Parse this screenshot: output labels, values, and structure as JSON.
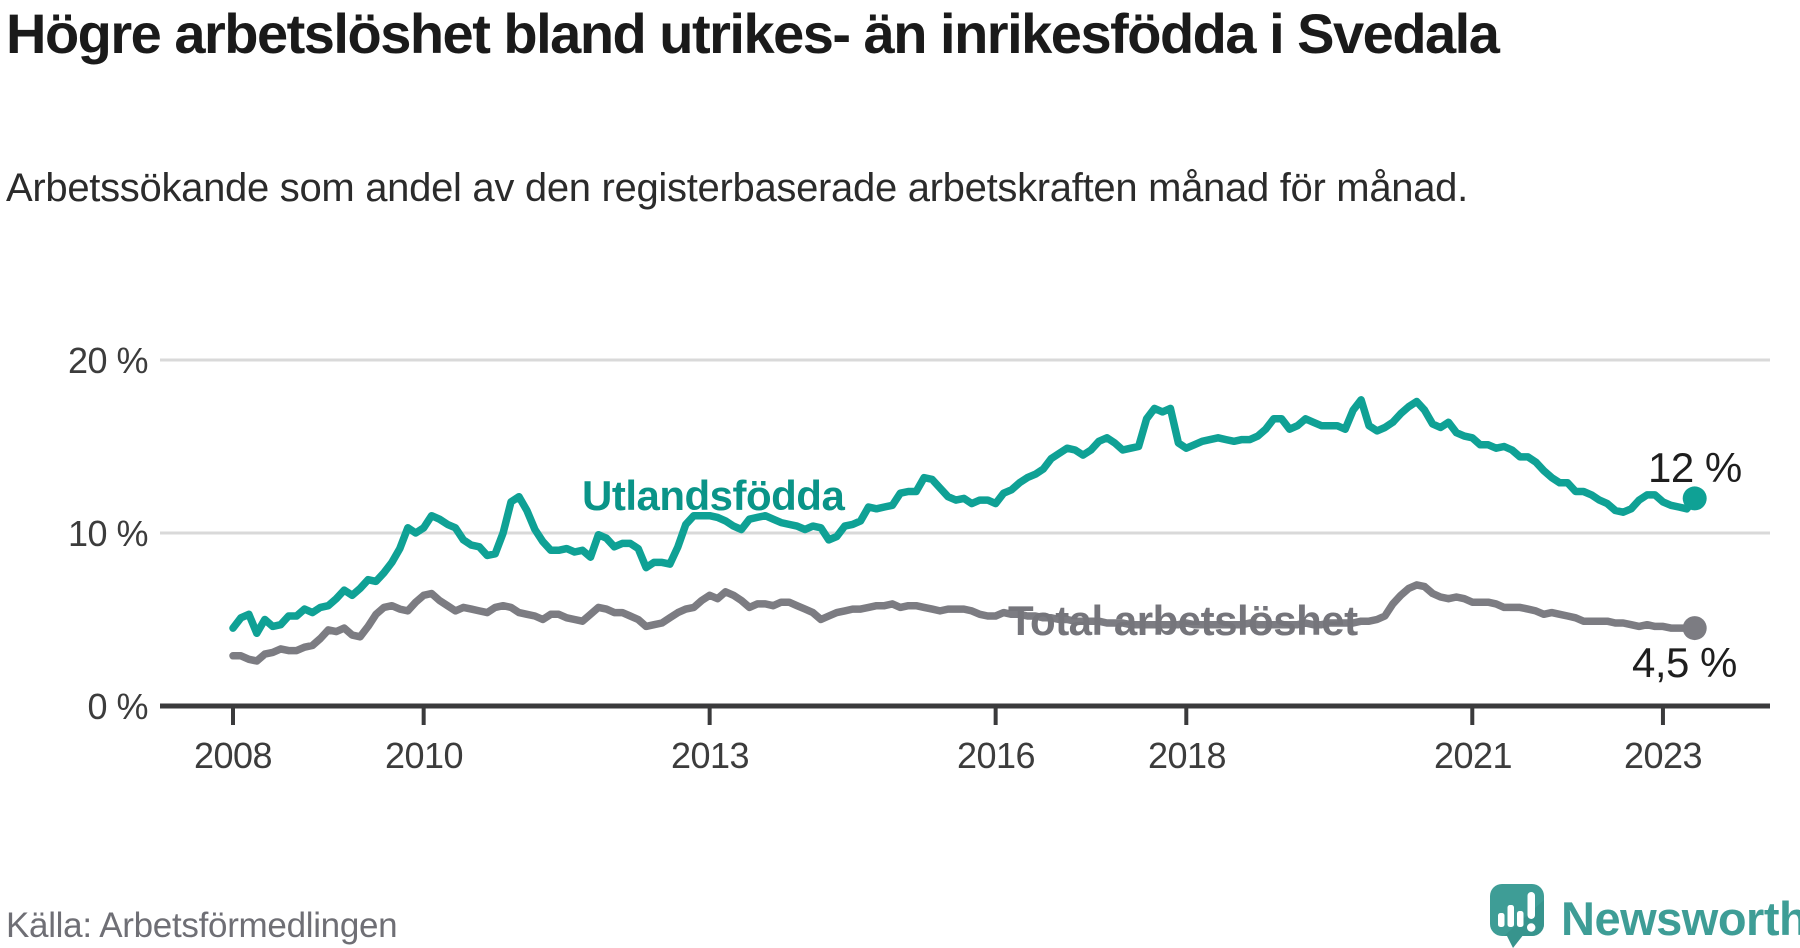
{
  "header": {
    "title": "Högre arbetslöshet bland utrikes- än inrikesfödda i Svedala",
    "subtitle": "Arbetssökande som andel av den registerbaserade arbetskraften månad för månad."
  },
  "source": {
    "label": "Källa: Arbetsförmedlingen"
  },
  "branding": {
    "wordmark": "Newsworthy",
    "logo_icon": "newsworthy-speech-bubble-bar-chart-icon",
    "brand_color": "#3E9D96"
  },
  "chart_data": {
    "type": "line",
    "title": "Högre arbetslöshet bland utrikes- än inrikesfödda i Svedala",
    "x_unit": "month",
    "x_range": "2008-01 to 2023-05",
    "grid": "horizontal",
    "ylim": [
      0,
      21
    ],
    "y_ticks": [
      {
        "label": "20 %",
        "value": 20
      },
      {
        "label": "10 %",
        "value": 10
      },
      {
        "label": "0 %",
        "value": 0
      }
    ],
    "x_ticks": [
      {
        "label": "2008",
        "year": 2008
      },
      {
        "label": "2010",
        "year": 2010
      },
      {
        "label": "2013",
        "year": 2013
      },
      {
        "label": "2016",
        "year": 2016
      },
      {
        "label": "2018",
        "year": 2018
      },
      {
        "label": "2021",
        "year": 2021
      },
      {
        "label": "2023",
        "year": 2023
      }
    ],
    "series": [
      {
        "name": "Utlandsfödda",
        "color": "#0FA195",
        "label_color": "#0A9488",
        "end_label": "12 %",
        "end_value": 12,
        "values": [
          4.5,
          5.1,
          5.3,
          4.2,
          5.0,
          4.6,
          4.7,
          5.2,
          5.2,
          5.6,
          5.4,
          5.7,
          5.8,
          6.2,
          6.7,
          6.4,
          6.8,
          7.3,
          7.2,
          7.7,
          8.3,
          9.1,
          10.3,
          10.0,
          10.3,
          11.0,
          10.8,
          10.5,
          10.3,
          9.6,
          9.3,
          9.2,
          8.7,
          8.8,
          10.0,
          11.8,
          12.1,
          11.3,
          10.2,
          9.5,
          9.0,
          9.0,
          9.1,
          8.9,
          9.0,
          8.6,
          9.9,
          9.7,
          9.2,
          9.4,
          9.4,
          9.1,
          8.0,
          8.3,
          8.3,
          8.2,
          9.2,
          10.5,
          11.0,
          11.0,
          11.0,
          10.9,
          10.7,
          10.4,
          10.2,
          10.8,
          10.9,
          11.0,
          10.8,
          10.6,
          10.5,
          10.4,
          10.2,
          10.4,
          10.3,
          9.6,
          9.8,
          10.4,
          10.5,
          10.7,
          11.5,
          11.4,
          11.5,
          11.6,
          12.3,
          12.4,
          12.4,
          13.2,
          13.1,
          12.6,
          12.1,
          11.9,
          12.0,
          11.7,
          11.9,
          11.9,
          11.7,
          12.3,
          12.5,
          12.9,
          13.2,
          13.4,
          13.7,
          14.3,
          14.6,
          14.9,
          14.8,
          14.5,
          14.8,
          15.3,
          15.5,
          15.2,
          14.8,
          14.9,
          15.0,
          16.6,
          17.2,
          17.0,
          17.2,
          15.2,
          14.9,
          15.1,
          15.3,
          15.4,
          15.5,
          15.4,
          15.3,
          15.4,
          15.4,
          15.6,
          16.0,
          16.6,
          16.6,
          16.0,
          16.2,
          16.6,
          16.4,
          16.2,
          16.2,
          16.2,
          16.0,
          17.1,
          17.7,
          16.2,
          15.9,
          16.1,
          16.4,
          16.9,
          17.3,
          17.6,
          17.1,
          16.3,
          16.1,
          16.4,
          15.8,
          15.6,
          15.5,
          15.1,
          15.1,
          14.9,
          15.0,
          14.8,
          14.4,
          14.4,
          14.1,
          13.6,
          13.2,
          12.9,
          12.9,
          12.4,
          12.4,
          12.2,
          11.9,
          11.7,
          11.3,
          11.2,
          11.4,
          11.9,
          12.2,
          12.2,
          11.8,
          11.6,
          11.5,
          11.4,
          12.0
        ]
      },
      {
        "name": "Total arbetslöshet",
        "color": "#7C7C82",
        "label_color": "#75757B",
        "end_label": "4,5 %",
        "end_value": 4.5,
        "values": [
          2.9,
          2.9,
          2.7,
          2.6,
          3.0,
          3.1,
          3.3,
          3.2,
          3.2,
          3.4,
          3.5,
          3.9,
          4.4,
          4.3,
          4.5,
          4.1,
          4.0,
          4.6,
          5.3,
          5.7,
          5.8,
          5.6,
          5.5,
          6.0,
          6.4,
          6.5,
          6.1,
          5.8,
          5.5,
          5.7,
          5.6,
          5.5,
          5.4,
          5.7,
          5.8,
          5.7,
          5.4,
          5.3,
          5.2,
          5.0,
          5.3,
          5.3,
          5.1,
          5.0,
          4.9,
          5.3,
          5.7,
          5.6,
          5.4,
          5.4,
          5.2,
          5.0,
          4.6,
          4.7,
          4.8,
          5.1,
          5.4,
          5.6,
          5.7,
          6.1,
          6.4,
          6.2,
          6.6,
          6.4,
          6.1,
          5.7,
          5.9,
          5.9,
          5.8,
          6.0,
          6.0,
          5.8,
          5.6,
          5.4,
          5.0,
          5.2,
          5.4,
          5.5,
          5.6,
          5.6,
          5.7,
          5.8,
          5.8,
          5.9,
          5.7,
          5.8,
          5.8,
          5.7,
          5.6,
          5.5,
          5.6,
          5.6,
          5.6,
          5.5,
          5.3,
          5.2,
          5.2,
          5.4,
          5.3,
          5.3,
          5.2,
          5.2,
          5.1,
          5.1,
          5.0,
          5.0,
          4.9,
          4.9,
          4.9,
          4.9,
          4.8,
          4.8,
          4.8,
          4.7,
          4.7,
          4.7,
          4.7,
          4.7,
          4.7,
          4.7,
          4.8,
          4.7,
          4.7,
          4.7,
          4.7,
          4.7,
          4.7,
          4.7,
          4.8,
          4.7,
          4.7,
          4.7,
          4.7,
          4.7,
          4.7,
          4.8,
          4.7,
          4.7,
          4.8,
          4.8,
          4.8,
          4.8,
          4.9,
          4.9,
          5.0,
          5.2,
          5.9,
          6.4,
          6.8,
          7.0,
          6.9,
          6.5,
          6.3,
          6.2,
          6.3,
          6.2,
          6.0,
          6.0,
          6.0,
          5.9,
          5.7,
          5.7,
          5.7,
          5.6,
          5.5,
          5.3,
          5.4,
          5.3,
          5.2,
          5.1,
          4.9,
          4.9,
          4.9,
          4.9,
          4.8,
          4.8,
          4.7,
          4.6,
          4.7,
          4.6,
          4.6,
          4.5,
          4.5,
          4.5,
          4.5
        ]
      }
    ]
  }
}
